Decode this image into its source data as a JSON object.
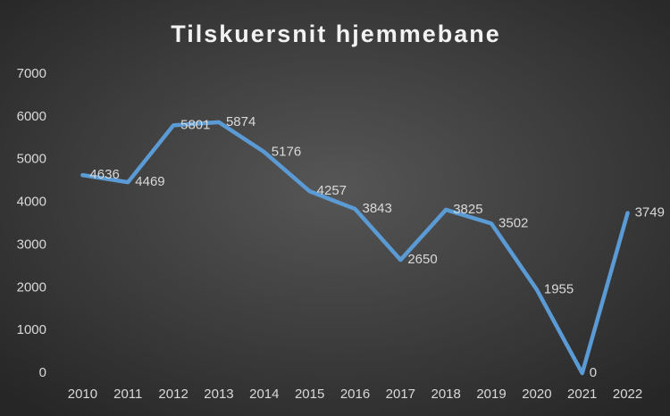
{
  "chart_data": {
    "type": "line",
    "title": "Tilskuersnit hjemmebane",
    "categories": [
      "2010",
      "2011",
      "2012",
      "2013",
      "2014",
      "2015",
      "2016",
      "2017",
      "2018",
      "2019",
      "2020",
      "2021",
      "2022"
    ],
    "values": [
      4636,
      4469,
      5801,
      5874,
      5176,
      4257,
      3843,
      2650,
      3825,
      3502,
      1955,
      0,
      3749
    ],
    "color": "#5b9bd5",
    "ylim": [
      0,
      7000
    ],
    "yticks": [
      0,
      1000,
      2000,
      3000,
      4000,
      5000,
      6000,
      7000
    ],
    "grid": false
  }
}
